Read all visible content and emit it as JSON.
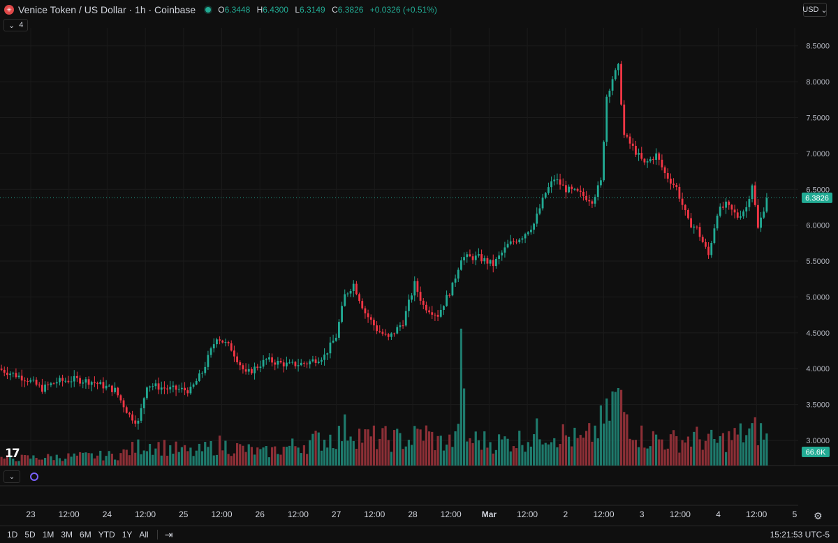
{
  "header": {
    "symbol": "Venice Token / US Dollar · 1h · Coinbase",
    "logo_icon": "venice-token-logo-icon",
    "ohlc": {
      "o_label": "O",
      "o_value": "6.3448",
      "h_label": "H",
      "h_value": "6.4300",
      "l_label": "L",
      "l_value": "6.3149",
      "c_label": "C",
      "c_value": "6.3826",
      "change": "+0.0326 (+0.51%)"
    },
    "indicators_count": "4",
    "currency": "USD"
  },
  "chart_data": {
    "type": "candlestick",
    "title": "Venice Token / US Dollar · 1h · Coinbase",
    "colors": {
      "up": "#22ab94",
      "down": "#f23645",
      "background": "#0f0f0f",
      "grid": "#1f1f1f"
    },
    "y_axis": {
      "ticks": [
        "8.5000",
        "8.0000",
        "7.5000",
        "7.0000",
        "6.5000",
        "6.0000",
        "5.5000",
        "5.0000",
        "4.5000",
        "4.0000",
        "3.5000",
        "3.0000"
      ],
      "ylim": [
        2.65,
        8.75
      ],
      "last_price_label": "6.3826",
      "last_price": 6.3826,
      "volume_label": "66.6K"
    },
    "x_axis": {
      "ticks": [
        "23",
        "12:00",
        "24",
        "12:00",
        "25",
        "12:00",
        "26",
        "12:00",
        "27",
        "12:00",
        "28",
        "12:00",
        "Mar",
        "12:00",
        "2",
        "12:00",
        "3",
        "12:00",
        "4",
        "12:00",
        "5"
      ]
    },
    "bar_count": 264,
    "anchors": [
      [
        0,
        4.0
      ],
      [
        10,
        3.85
      ],
      [
        15,
        3.72
      ],
      [
        20,
        3.82
      ],
      [
        26,
        3.85
      ],
      [
        32,
        3.82
      ],
      [
        40,
        3.7
      ],
      [
        45,
        3.35
      ],
      [
        48,
        3.25
      ],
      [
        51,
        3.78
      ],
      [
        58,
        3.72
      ],
      [
        66,
        3.7
      ],
      [
        70,
        3.95
      ],
      [
        75,
        4.45
      ],
      [
        80,
        4.28
      ],
      [
        85,
        3.92
      ],
      [
        92,
        4.12
      ],
      [
        100,
        4.05
      ],
      [
        106,
        4.08
      ],
      [
        112,
        4.18
      ],
      [
        116,
        4.45
      ],
      [
        119,
        5.02
      ],
      [
        122,
        5.18
      ],
      [
        126,
        4.78
      ],
      [
        130,
        4.55
      ],
      [
        134,
        4.42
      ],
      [
        139,
        4.65
      ],
      [
        143,
        5.18
      ],
      [
        146,
        4.88
      ],
      [
        151,
        4.75
      ],
      [
        156,
        5.15
      ],
      [
        159,
        5.55
      ],
      [
        165,
        5.55
      ],
      [
        170,
        5.45
      ],
      [
        175,
        5.72
      ],
      [
        180,
        5.85
      ],
      [
        184,
        6.02
      ],
      [
        188,
        6.45
      ],
      [
        191,
        6.65
      ],
      [
        195,
        6.5
      ],
      [
        199,
        6.45
      ],
      [
        204,
        6.35
      ],
      [
        207,
        6.6
      ],
      [
        209,
        7.8
      ],
      [
        211,
        8.05
      ],
      [
        213,
        8.2
      ],
      [
        215,
        7.25
      ],
      [
        218,
        7.08
      ],
      [
        222,
        6.85
      ],
      [
        226,
        6.98
      ],
      [
        229,
        6.72
      ],
      [
        233,
        6.52
      ],
      [
        237,
        6.05
      ],
      [
        240,
        5.95
      ],
      [
        244,
        5.58
      ],
      [
        247,
        6.18
      ],
      [
        250,
        6.28
      ],
      [
        254,
        6.12
      ],
      [
        257,
        6.25
      ],
      [
        259,
        6.58
      ],
      [
        261,
        5.95
      ],
      [
        264,
        6.38
      ]
    ],
    "volume_anchors": [
      [
        0,
        12
      ],
      [
        40,
        18
      ],
      [
        50,
        38
      ],
      [
        66,
        22
      ],
      [
        75,
        36
      ],
      [
        90,
        22
      ],
      [
        116,
        52
      ],
      [
        119,
        66
      ],
      [
        125,
        48
      ],
      [
        140,
        44
      ],
      [
        145,
        58
      ],
      [
        150,
        40
      ],
      [
        156,
        42
      ],
      [
        158,
        165
      ],
      [
        160,
        46
      ],
      [
        170,
        40
      ],
      [
        180,
        46
      ],
      [
        186,
        60
      ],
      [
        190,
        58
      ],
      [
        200,
        40
      ],
      [
        208,
        80
      ],
      [
        211,
        120
      ],
      [
        214,
        95
      ],
      [
        220,
        50
      ],
      [
        230,
        42
      ],
      [
        238,
        48
      ],
      [
        246,
        40
      ],
      [
        252,
        50
      ],
      [
        260,
        60
      ],
      [
        264,
        45
      ]
    ],
    "volume_max": 190
  },
  "bottom_toolbar": {
    "ranges": [
      "1D",
      "5D",
      "1M",
      "3M",
      "6M",
      "YTD",
      "1Y",
      "All"
    ],
    "clock": "15:21:53 UTC-5"
  }
}
